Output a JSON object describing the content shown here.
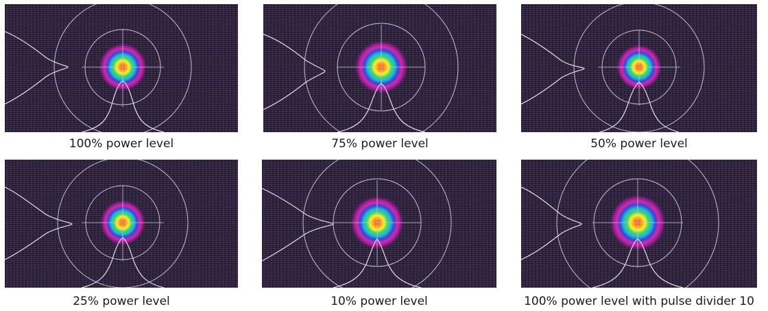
{
  "captions": [
    "100% power level",
    "75% power level",
    "50% power level",
    "25% power level",
    "10% power level",
    "100% power level with pulse divider 10"
  ]
}
